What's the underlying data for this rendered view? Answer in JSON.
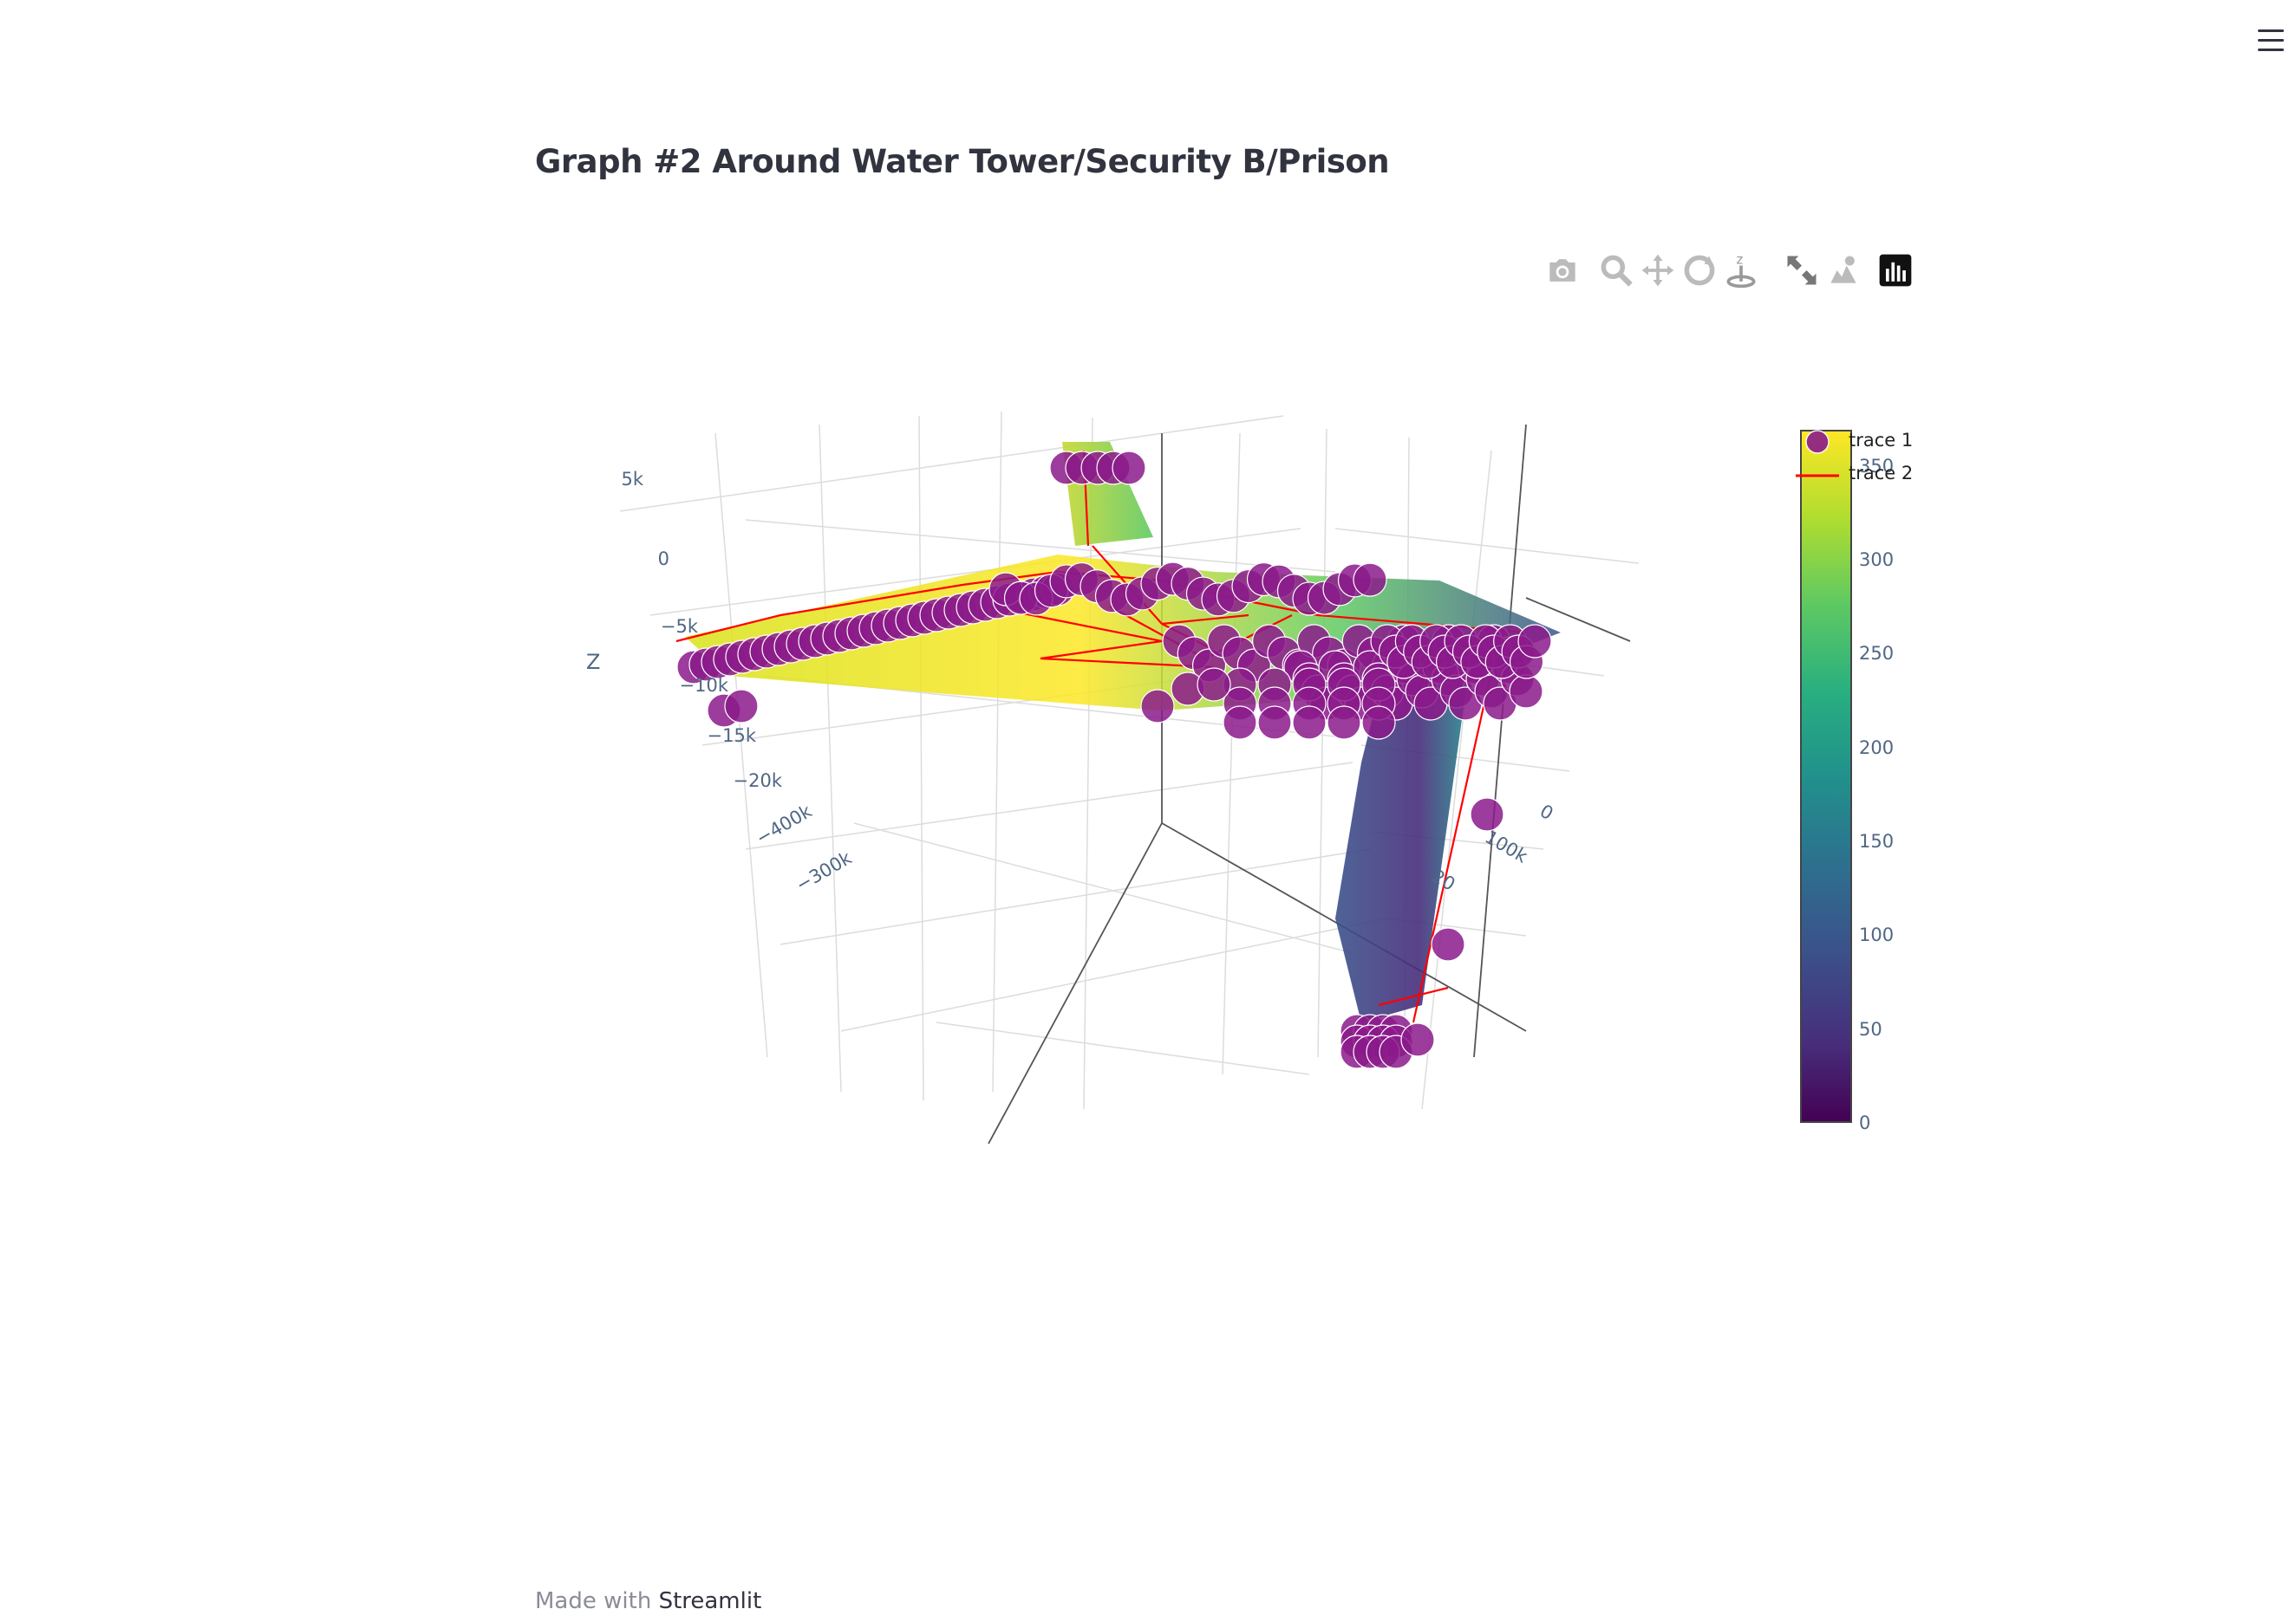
{
  "page": {
    "title": "Graph #2 Around Water Tower/Security B/Prison",
    "footer_prefix": "Made with",
    "footer_link": "Streamlit"
  },
  "modebar": [
    {
      "name": "download-png-button",
      "icon": "camera-icon"
    },
    {
      "name": "zoom-button",
      "icon": "zoom-icon"
    },
    {
      "name": "pan-button",
      "icon": "pan-icon"
    },
    {
      "name": "orbit-rotation-button",
      "icon": "orbit-icon"
    },
    {
      "name": "turntable-rotation-button",
      "icon": "turntable-icon"
    },
    {
      "name": "reset-camera-button",
      "icon": "reset-camera-icon"
    },
    {
      "name": "hover-mode-button",
      "icon": "hover-icon"
    },
    {
      "name": "plotly-logo-button",
      "icon": "plotly-logo-icon"
    }
  ],
  "chart_data": {
    "type": "scatter3d",
    "title": "",
    "axes": {
      "z": {
        "label": "Z",
        "ticks": [
          "5k",
          "0",
          "−5k",
          "−10k",
          "−15k",
          "−20k"
        ],
        "range": [
          -22000,
          6000
        ]
      },
      "x": {
        "label": "",
        "ticks": [
          "−400k",
          "−300k"
        ]
      },
      "y": {
        "label": "",
        "ticks": [
          "0",
          "100k",
          "20"
        ]
      }
    },
    "series": [
      {
        "name": "trace 1",
        "mode": "markers",
        "color": "#8b1a8b"
      },
      {
        "name": "trace 2",
        "mode": "lines",
        "color": "#ff0000"
      }
    ],
    "surface": {
      "colorscale": "Viridis",
      "colorbar_ticks": [
        "350",
        "300",
        "250",
        "200",
        "150",
        "100",
        "50",
        "0"
      ],
      "cmin": 0,
      "cmax": 360
    },
    "grid": true,
    "legend_position": "top-right"
  }
}
